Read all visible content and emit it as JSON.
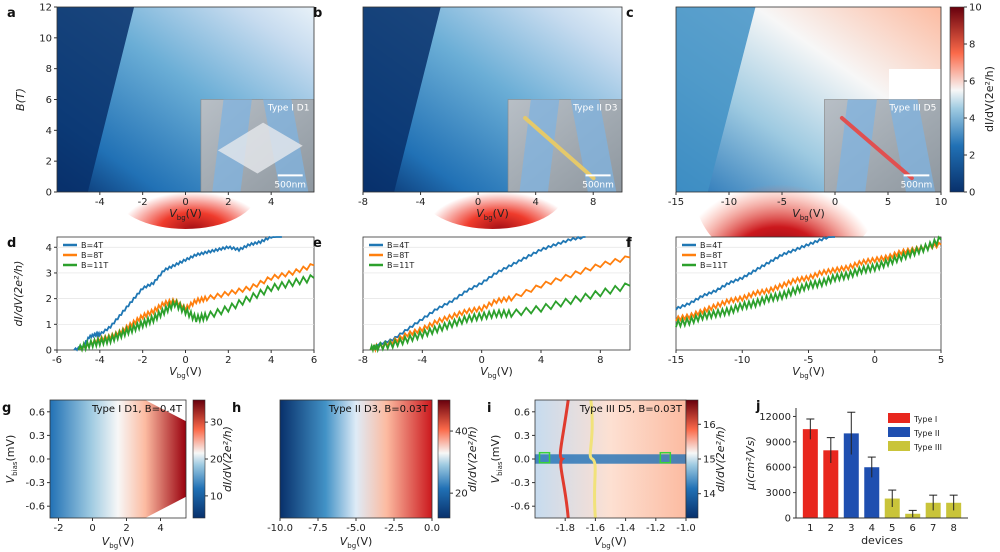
{
  "colors": {
    "blue_dark": "#08306b",
    "blue": "#2171b5",
    "blue_light": "#9ecae1",
    "white": "#f7f7f7",
    "red_light": "#fcae91",
    "red": "#cb181d",
    "red_dark": "#67000d",
    "s4": "#1f77b4",
    "s8": "#ff7f0e",
    "s11": "#2ca02c",
    "type1": "#e8271e",
    "type2": "#1f4fb0",
    "type3": "#c9c43a"
  },
  "chart_data": [
    {
      "id": "a",
      "type": "heatmap",
      "panel_label": "a",
      "ylabel": "B(T)",
      "xlabel": "V_bg(V)",
      "xlabel_main": "V",
      "xlabel_sub": "bg",
      "xlabel_tail": "(V)",
      "xticks": [
        -4,
        -2,
        0,
        2,
        4
      ],
      "yticks": [
        0,
        2,
        4,
        6,
        8,
        10,
        12
      ],
      "xlim": [
        -6,
        6
      ],
      "ylim": [
        0,
        12
      ],
      "inset_title": "Type I D1",
      "scale_bar": "500nm"
    },
    {
      "id": "b",
      "type": "heatmap",
      "panel_label": "b",
      "xlabel": "V_bg(V)",
      "xlabel_main": "V",
      "xlabel_sub": "bg",
      "xlabel_tail": "(V)",
      "xticks": [
        -8,
        -4,
        0,
        4,
        8
      ],
      "xlim": [
        -8,
        10
      ],
      "ylim": [
        0,
        12
      ],
      "inset_title": "Type II D3",
      "scale_bar": "500nm"
    },
    {
      "id": "c",
      "type": "heatmap",
      "panel_label": "c",
      "xlabel": "V_bg(V)",
      "xlabel_main": "V",
      "xlabel_sub": "bg",
      "xlabel_tail": "(V)",
      "xticks": [
        -15,
        -10,
        -5,
        0,
        5,
        10
      ],
      "xlim": [
        -15,
        10
      ],
      "ylim": [
        0,
        12
      ],
      "inset_title": "Type III D5",
      "scale_bar": "500nm",
      "colorbar": {
        "label": "dI/dV(2e²/h)",
        "ticks": [
          0,
          2,
          4,
          6,
          8,
          10
        ],
        "range": [
          0,
          10
        ]
      }
    },
    {
      "id": "d",
      "type": "line",
      "panel_label": "d",
      "ylabel": "dI/dV(2e²/h)",
      "xlabel": "V_bg(V)",
      "xlabel_main": "V",
      "xlabel_sub": "bg",
      "xlabel_tail": "(V)",
      "xticks": [
        -6,
        -4,
        -2,
        0,
        2,
        4,
        6
      ],
      "yticks": [
        0,
        1,
        2,
        3,
        4
      ],
      "xlim": [
        -6,
        6
      ],
      "ylim": [
        0,
        4.4
      ],
      "series": [
        {
          "name": "B=4T",
          "x": [
            -5.2,
            -4.8,
            -4.5,
            -4.2,
            -4.0,
            -3.5,
            -3.0,
            -2.5,
            -2.0,
            -1.5,
            -1.0,
            -0.5,
            0.0,
            0.5,
            1.0,
            1.5,
            2.0,
            2.5,
            3.0,
            3.5,
            4.0,
            4.5
          ],
          "y": [
            0,
            0.1,
            0.5,
            0.6,
            0.6,
            0.9,
            1.4,
            1.9,
            2.4,
            2.6,
            3.1,
            3.3,
            3.5,
            3.7,
            3.8,
            3.9,
            4.0,
            3.9,
            4.1,
            4.2,
            4.4,
            4.5
          ]
        },
        {
          "name": "B=8T",
          "x": [
            -5.0,
            -4.5,
            -4.0,
            -3.5,
            -3.0,
            -2.5,
            -2.0,
            -1.5,
            -1.0,
            -0.5,
            0.0,
            0.5,
            1.0,
            2.0,
            3.0,
            4.0,
            5.0,
            6.0
          ],
          "y": [
            0,
            0.2,
            0.4,
            0.5,
            0.7,
            1.0,
            1.3,
            1.5,
            1.8,
            1.9,
            1.6,
            1.9,
            2.0,
            2.2,
            2.4,
            2.8,
            3.0,
            3.3
          ]
        },
        {
          "name": "B=11T",
          "x": [
            -5.0,
            -4.5,
            -4.0,
            -3.5,
            -3.0,
            -2.5,
            -2.0,
            -1.5,
            -1.0,
            -0.5,
            0.0,
            0.5,
            1.0,
            2.0,
            3.0,
            4.0,
            5.0,
            6.0
          ],
          "y": [
            0,
            0.2,
            0.3,
            0.4,
            0.6,
            0.8,
            1.0,
            1.2,
            1.5,
            1.8,
            1.5,
            1.2,
            1.3,
            1.6,
            2.0,
            2.4,
            2.6,
            2.8
          ]
        }
      ]
    },
    {
      "id": "e",
      "type": "line",
      "panel_label": "e",
      "xlabel": "V_bg(V)",
      "xlabel_main": "V",
      "xlabel_sub": "bg",
      "xlabel_tail": "(V)",
      "xticks": [
        -8,
        -4,
        0,
        4,
        8
      ],
      "xlim": [
        -8,
        10
      ],
      "ylim": [
        0,
        4.4
      ],
      "series": [
        {
          "name": "B=4T",
          "x": [
            -7.5,
            -7.0,
            -6.0,
            -5.0,
            -4.0,
            -3.0,
            -2.0,
            -1.0,
            0.0,
            1.0,
            2.0,
            3.0,
            4.0,
            5.0,
            6.0,
            7.0
          ],
          "y": [
            0,
            0.2,
            0.4,
            0.8,
            1.2,
            1.6,
            1.9,
            2.3,
            2.6,
            3.0,
            3.3,
            3.6,
            3.9,
            4.1,
            4.3,
            4.4
          ]
        },
        {
          "name": "B=8T",
          "x": [
            -7.5,
            -7.0,
            -6.0,
            -5.0,
            -4.0,
            -3.0,
            -2.0,
            -1.0,
            0.0,
            1.0,
            2.0,
            4.0,
            6.0,
            8.0,
            10.0
          ],
          "y": [
            0,
            0.1,
            0.3,
            0.6,
            0.8,
            1.1,
            1.3,
            1.5,
            1.6,
            1.9,
            2.0,
            2.5,
            2.9,
            3.3,
            3.6
          ]
        },
        {
          "name": "B=11T",
          "x": [
            -7.5,
            -7.0,
            -6.0,
            -5.0,
            -4.0,
            -3.0,
            -2.0,
            -1.0,
            0.0,
            1.0,
            2.0,
            4.0,
            6.0,
            8.0,
            10.0
          ],
          "y": [
            0,
            0.1,
            0.2,
            0.4,
            0.6,
            0.8,
            1.0,
            1.2,
            1.3,
            1.4,
            1.4,
            1.6,
            1.9,
            2.2,
            2.5
          ]
        }
      ]
    },
    {
      "id": "f",
      "type": "line",
      "panel_label": "f",
      "xlabel": "V_bg(V)",
      "xlabel_main": "V",
      "xlabel_sub": "bg",
      "xlabel_tail": "(V)",
      "xticks": [
        -15,
        -10,
        -5,
        0,
        5
      ],
      "xlim": [
        -15,
        5
      ],
      "ylim": [
        0,
        4.4
      ],
      "series": [
        {
          "name": "B=4T",
          "x": [
            -15,
            -14,
            -13,
            -12,
            -11,
            -10,
            -9,
            -8,
            -7,
            -6,
            -5,
            -4,
            -3
          ],
          "y": [
            1.6,
            1.8,
            2.1,
            2.3,
            2.6,
            2.8,
            3.1,
            3.4,
            3.7,
            3.9,
            4.1,
            4.3,
            4.5
          ]
        },
        {
          "name": "B=8T",
          "x": [
            -15,
            -14,
            -13,
            -12,
            -11,
            -10,
            -9,
            -8,
            -7,
            -6,
            -5,
            -4,
            -3,
            -2,
            -1,
            0,
            1,
            2,
            3,
            4,
            5
          ],
          "y": [
            1.2,
            1.3,
            1.5,
            1.7,
            1.9,
            2.0,
            2.2,
            2.3,
            2.5,
            2.7,
            2.8,
            3.0,
            3.1,
            3.2,
            3.4,
            3.5,
            3.6,
            3.8,
            3.9,
            4.0,
            4.1
          ]
        },
        {
          "name": "B=11T",
          "x": [
            -15,
            -14,
            -13,
            -12,
            -11,
            -10,
            -9,
            -8,
            -7,
            -6,
            -5,
            -4,
            -3,
            -2,
            -1,
            0,
            1,
            2,
            3,
            4,
            5
          ],
          "y": [
            1.0,
            1.1,
            1.3,
            1.4,
            1.5,
            1.7,
            1.8,
            2.0,
            2.1,
            2.3,
            2.5,
            2.6,
            2.8,
            2.9,
            3.1,
            3.2,
            3.4,
            3.6,
            3.8,
            4.0,
            4.3
          ]
        }
      ]
    },
    {
      "id": "g",
      "type": "heatmap",
      "panel_label": "g",
      "title": "Type I D1, B=0.4T",
      "ylabel": "V_bias(mV)",
      "ylabel_main": "V",
      "ylabel_sub": "bias",
      "ylabel_tail": "(mV)",
      "xlabel": "V_bg(V)",
      "xlabel_main": "V",
      "xlabel_sub": "bg",
      "xlabel_tail": "(V)",
      "xticks": [
        -2,
        0,
        2,
        4
      ],
      "yticks": [
        -0.6,
        -0.3,
        0.0,
        0.3,
        0.6
      ],
      "xlim": [
        -2.5,
        5.5
      ],
      "ylim": [
        -0.75,
        0.75
      ],
      "colorbar": {
        "label": "dI/dV(2e²/h)",
        "ticks": [
          10,
          20,
          30
        ],
        "range": [
          4,
          36
        ]
      }
    },
    {
      "id": "h",
      "type": "heatmap",
      "panel_label": "h",
      "title": "Type II D3, B=0.03T",
      "xlabel": "V_bg(V)",
      "xlabel_main": "V",
      "xlabel_sub": "bg",
      "xlabel_tail": "(V)",
      "xticks": [
        -10.0,
        -7.5,
        -5.0,
        -2.5,
        0.0
      ],
      "xlim": [
        -10,
        0
      ],
      "ylim": [
        -0.75,
        0.75
      ],
      "colorbar": {
        "label": "dI/dV(2e²/h)",
        "ticks": [
          20,
          40
        ],
        "range": [
          12,
          50
        ]
      }
    },
    {
      "id": "i",
      "type": "heatmap",
      "panel_label": "i",
      "title": "Type III D5, B=0.03T",
      "ylabel": "V_bias(mV)",
      "ylabel_main": "V",
      "ylabel_sub": "bias",
      "ylabel_tail": "(mV)",
      "xlabel": "V_bg(V)",
      "xlabel_main": "V",
      "xlabel_sub": "bg",
      "xlabel_tail": "(V)",
      "xticks": [
        -1.8,
        -1.6,
        -1.4,
        -1.2,
        -1.0
      ],
      "yticks": [
        -0.6,
        -0.3,
        0.0,
        0.3,
        0.6
      ],
      "xlim": [
        -2.0,
        -1.0
      ],
      "ylim": [
        -0.75,
        0.75
      ],
      "colorbar": {
        "label": "dI/dV(2e²/h)",
        "ticks": [
          14,
          15,
          16
        ],
        "range": [
          13.3,
          16.7
        ]
      }
    },
    {
      "id": "j",
      "type": "bar",
      "panel_label": "j",
      "ylabel": "μ(cm²/Vs)",
      "xlabel": "devices",
      "categories": [
        "1",
        "2",
        "3",
        "4",
        "5",
        "6",
        "7",
        "8"
      ],
      "values": [
        10500,
        8000,
        10000,
        6000,
        2300,
        500,
        1800,
        1800
      ],
      "errors": [
        1200,
        1500,
        2500,
        1200,
        1000,
        400,
        900,
        900
      ],
      "groups": [
        "Type I",
        "Type I",
        "Type II",
        "Type II",
        "Type III",
        "Type III",
        "Type III",
        "Type III"
      ],
      "yticks": [
        0,
        3000,
        6000,
        9000,
        12000
      ],
      "ylim": [
        0,
        13000
      ],
      "legend": [
        "Type I",
        "Type II",
        "Type III"
      ]
    }
  ]
}
